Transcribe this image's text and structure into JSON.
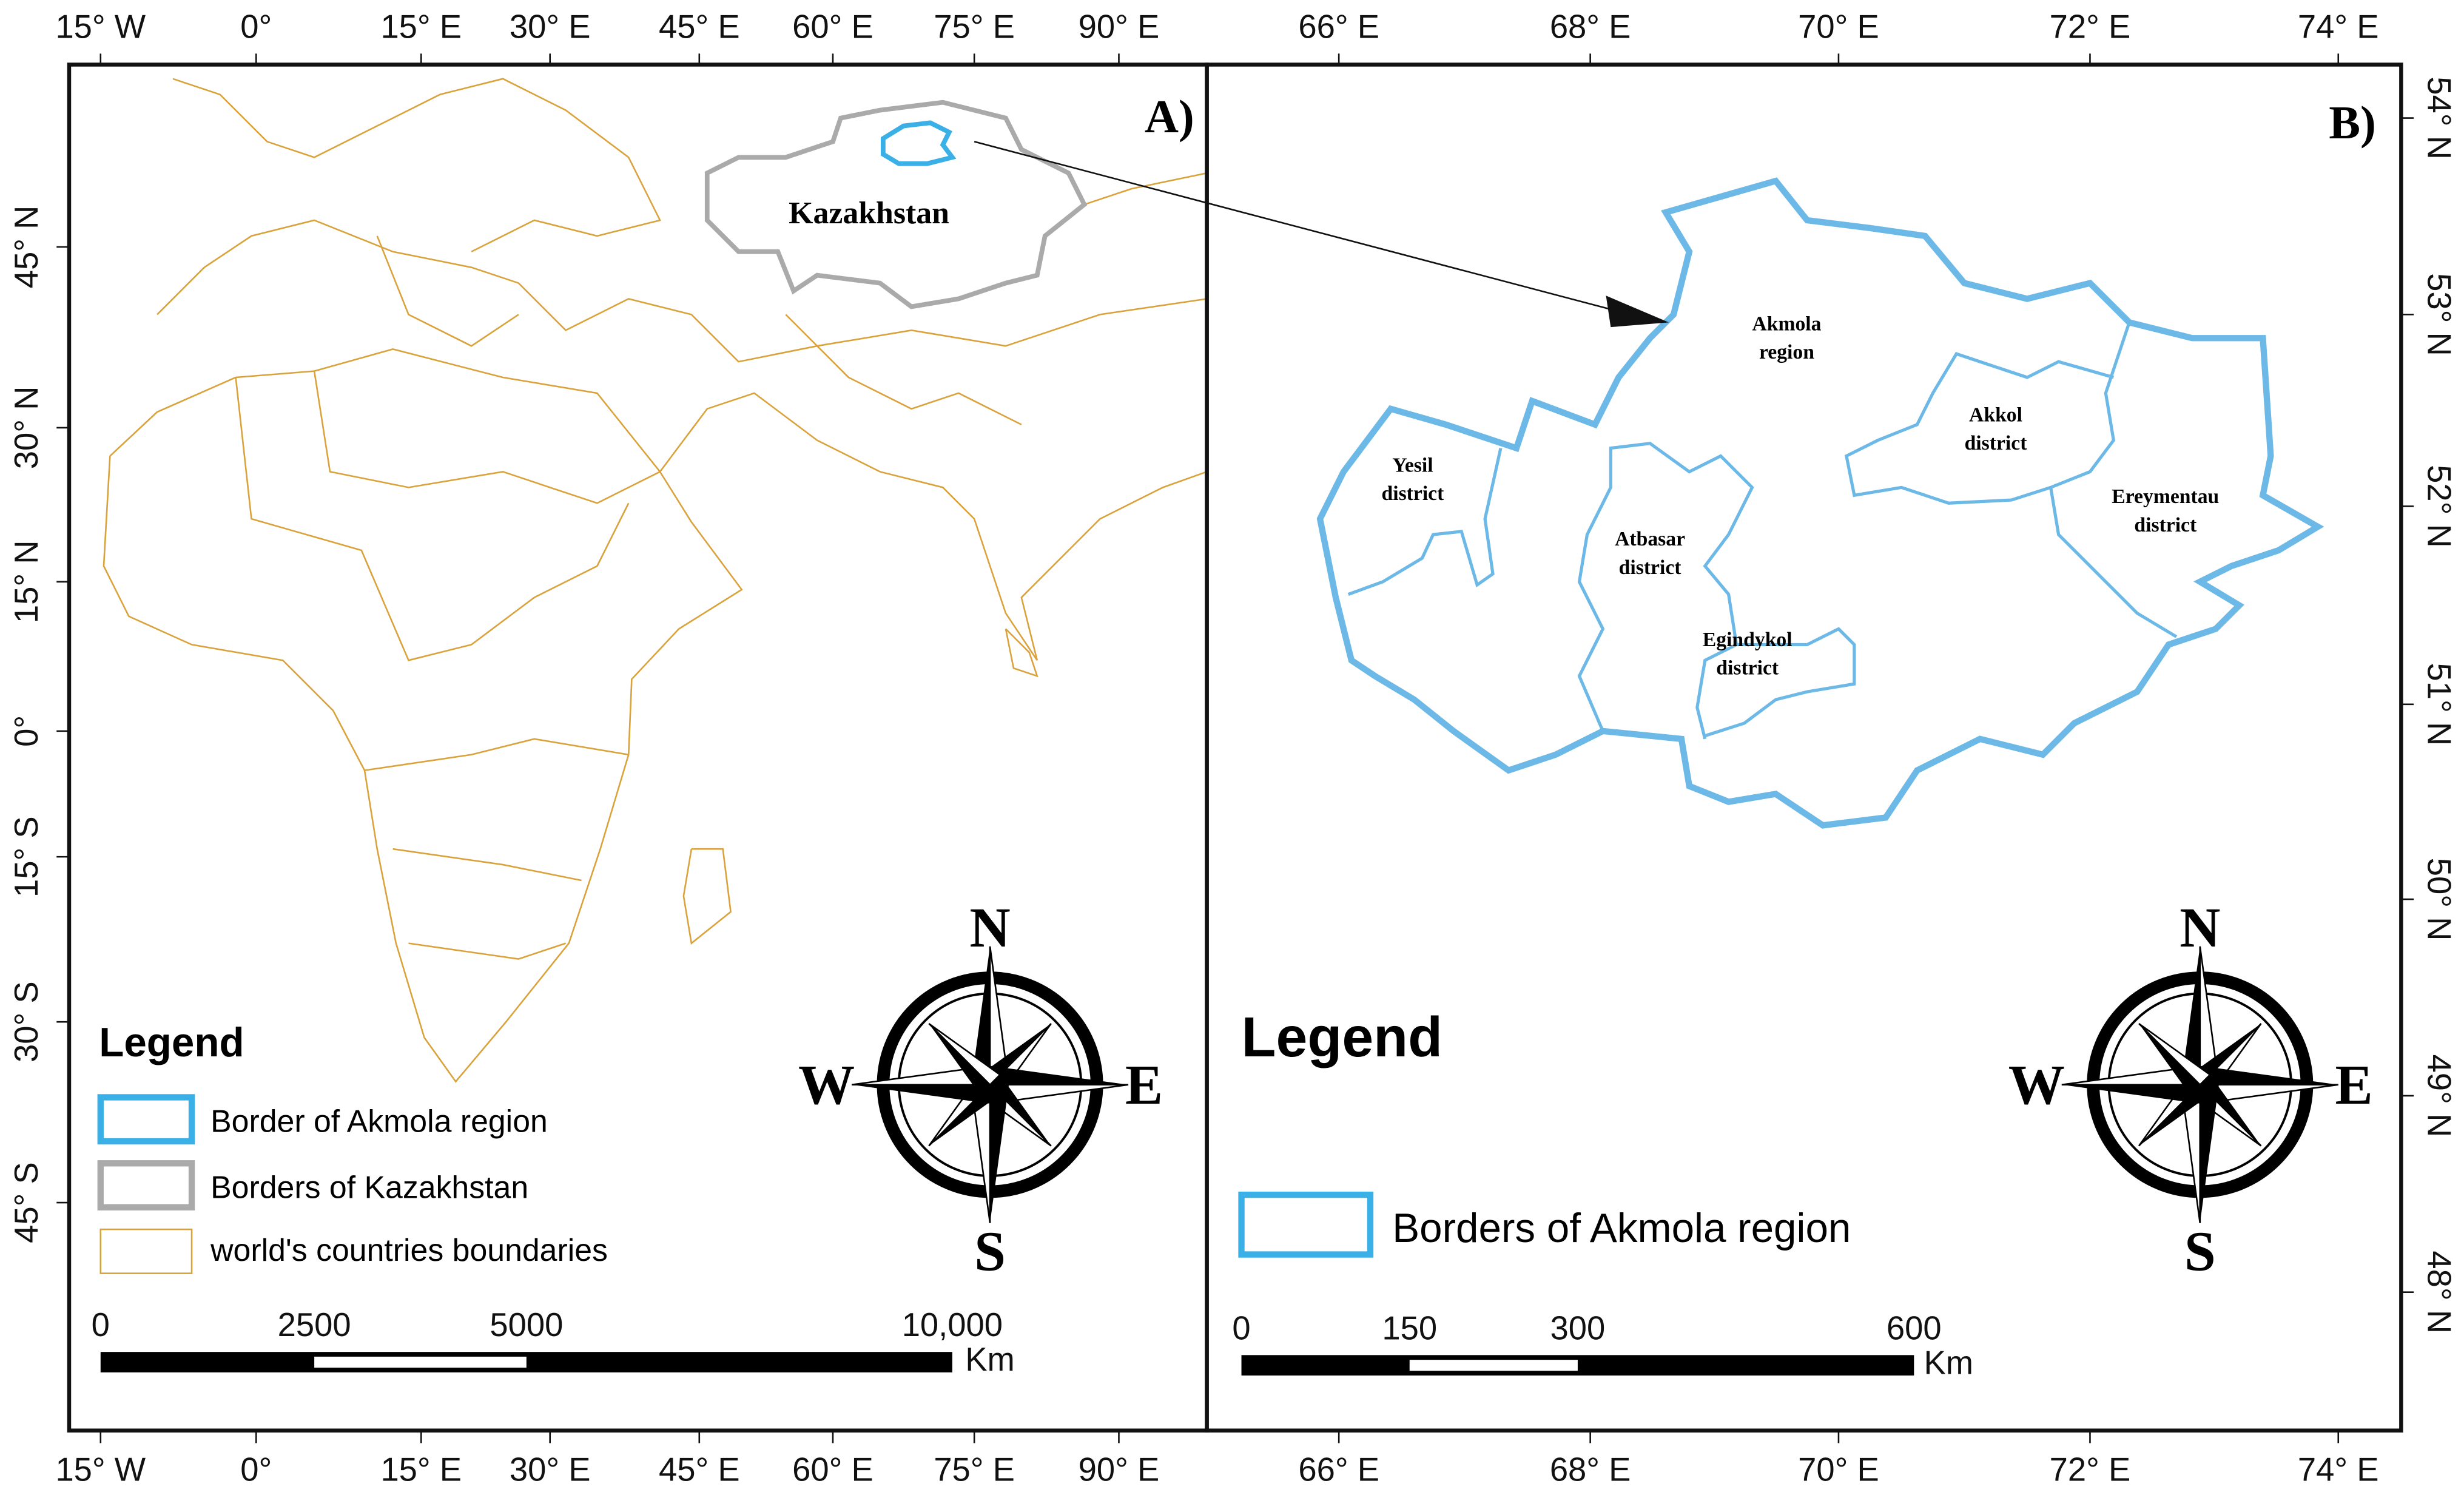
{
  "panel_a": {
    "label": "A)",
    "top_ticks": [
      "15° W",
      "0°",
      "15° E",
      "30° E",
      "45° E",
      "60° E",
      "75° E",
      "90° E"
    ],
    "bottom_ticks": [
      "15° W",
      "0°",
      "15° E",
      "30° E",
      "45° E",
      "60° E",
      "75° E",
      "90° E"
    ],
    "left_ticks": [
      "45° N",
      "30° N",
      "15° N",
      "0°",
      "15° S",
      "30° S",
      "45° S"
    ],
    "country_label": "Kazakhstan",
    "legend": {
      "title": "Legend",
      "items": [
        "Border of Akmola region",
        "Borders of Kazakhstan",
        "world's countries boundaries"
      ]
    },
    "scale": {
      "ticks": [
        "0",
        "2500",
        "5000",
        "10,000"
      ],
      "unit": "Km"
    },
    "compass": {
      "n": "N",
      "e": "E",
      "s": "S",
      "w": "W"
    }
  },
  "panel_b": {
    "label": "B)",
    "top_ticks": [
      "66° E",
      "68° E",
      "70° E",
      "72° E",
      "74° E"
    ],
    "bottom_ticks": [
      "66° E",
      "68° E",
      "70° E",
      "72° E",
      "74° E"
    ],
    "right_ticks": [
      "54° N",
      "53° N",
      "52° N",
      "51° N",
      "50° N",
      "49° N",
      "48° N"
    ],
    "regions": [
      {
        "lines": [
          "Akmola",
          "region"
        ]
      },
      {
        "lines": [
          "Yesil",
          "district"
        ]
      },
      {
        "lines": [
          "Atbasar",
          "district"
        ]
      },
      {
        "lines": [
          "Egindykol",
          "district"
        ]
      },
      {
        "lines": [
          "Akkol",
          "district"
        ]
      },
      {
        "lines": [
          "Ereymentau",
          "district"
        ]
      }
    ],
    "legend": {
      "title": "Legend",
      "items": [
        "Borders of Akmola region"
      ]
    },
    "scale": {
      "ticks": [
        "0",
        "150",
        "300",
        "600"
      ],
      "unit": "Km"
    },
    "compass": {
      "n": "N",
      "e": "E",
      "s": "S",
      "w": "W"
    }
  }
}
